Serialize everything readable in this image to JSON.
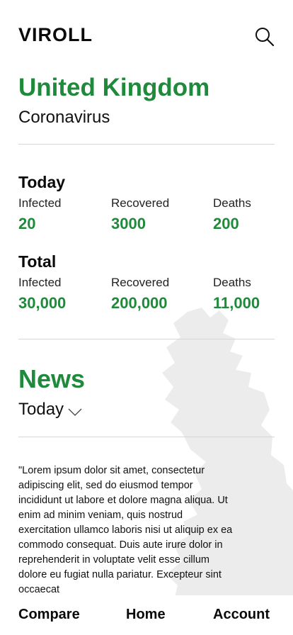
{
  "header": {
    "logo": "VIROLL",
    "search_icon": "search-icon"
  },
  "location": {
    "country": "United Kingdom",
    "subtitle": "Coronavirus"
  },
  "today": {
    "title": "Today",
    "stats": [
      {
        "label": "Infected",
        "value": "20"
      },
      {
        "label": "Recovered",
        "value": "3000"
      },
      {
        "label": "Deaths",
        "value": "200"
      }
    ]
  },
  "total": {
    "title": "Total",
    "stats": [
      {
        "label": "Infected",
        "value": "30,000"
      },
      {
        "label": "Recovered",
        "value": "200,000"
      },
      {
        "label": "Deaths",
        "value": "11,000"
      }
    ]
  },
  "news": {
    "title": "News",
    "filter": "Today",
    "filter_icon": "chevron-down-icon",
    "article": "\"Lorem ipsum dolor sit amet, consectetur adipiscing elit, sed do eiusmod tempor incididunt ut labore et dolore magna aliqua. Ut enim ad minim veniam, quis nostrud exercitation ullamco laboris nisi ut aliquip ex ea commodo consequat. Duis aute irure dolor in reprehenderit in voluptate velit esse cillum dolore eu fugiat nulla pariatur. Excepteur sint occaecat"
  },
  "bottom_nav": [
    {
      "label": "Compare"
    },
    {
      "label": "Home"
    },
    {
      "label": "Account"
    }
  ],
  "colors": {
    "accent": "#1f8a3b",
    "text": "#111111",
    "divider": "#d6d6d6",
    "map": "#ececec"
  }
}
